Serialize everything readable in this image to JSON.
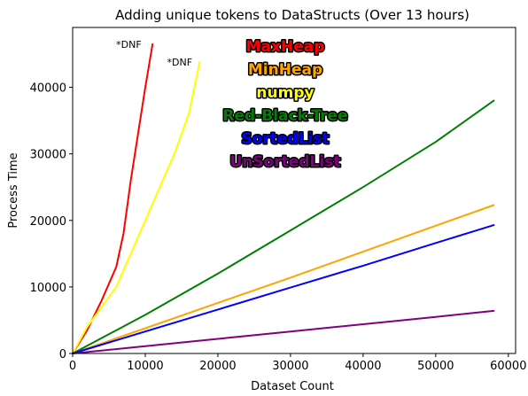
{
  "chart_data": {
    "type": "line",
    "title": "Adding unique tokens to DataStructs (Over 13 hours)",
    "xlabel": "Dataset Count",
    "ylabel": "Process Time",
    "xlim": [
      0,
      61000
    ],
    "ylim": [
      0,
      49000
    ],
    "xticks": [
      0,
      10000,
      20000,
      30000,
      40000,
      50000,
      60000
    ],
    "yticks": [
      0,
      10000,
      20000,
      30000,
      40000
    ],
    "xtick_labels": [
      "0",
      "10000",
      "20000",
      "30000",
      "40000",
      "50000",
      "60000"
    ],
    "ytick_labels": [
      "0",
      "10000",
      "20000",
      "30000",
      "40000"
    ],
    "grid": false,
    "legend_position": "top-center",
    "series": [
      {
        "name": "MaxHeap",
        "color": "#ff0000",
        "x": [
          0,
          2000,
          4000,
          6000,
          7000,
          8000,
          9000,
          10000,
          11000
        ],
        "y": [
          0,
          3500,
          8000,
          13000,
          18000,
          26000,
          33000,
          40000,
          46500
        ]
      },
      {
        "name": "MinHeap",
        "color": "#ffa500",
        "x": [
          0,
          10000,
          20000,
          30000,
          40000,
          50000,
          58000
        ],
        "y": [
          0,
          3800,
          7600,
          11400,
          15300,
          19200,
          22300
        ]
      },
      {
        "name": "numpy",
        "color": "#ffff00",
        "x": [
          0,
          2000,
          4000,
          6000,
          8000,
          10000,
          12000,
          14000,
          16000,
          17500
        ],
        "y": [
          0,
          4000,
          7000,
          10000,
          15000,
          20000,
          25000,
          30000,
          36000,
          43800
        ]
      },
      {
        "name": "Red-Black-Tree",
        "color": "#008000",
        "x": [
          0,
          10000,
          20000,
          30000,
          40000,
          50000,
          58000
        ],
        "y": [
          0,
          5800,
          12000,
          18500,
          25000,
          31800,
          38000
        ]
      },
      {
        "name": "SortedList",
        "color": "#0000ff",
        "x": [
          0,
          10000,
          20000,
          30000,
          40000,
          50000,
          58000
        ],
        "y": [
          0,
          3300,
          6600,
          9900,
          13200,
          16600,
          19300
        ]
      },
      {
        "name": "UnSortedList",
        "color": "#800080",
        "x": [
          0,
          10000,
          20000,
          30000,
          40000,
          50000,
          58000
        ],
        "y": [
          0,
          1100,
          2200,
          3300,
          4400,
          5500,
          6400
        ]
      }
    ],
    "annotations": [
      {
        "text": "*DNF",
        "x": 6000,
        "y": 46500
      },
      {
        "text": "*DNF",
        "x": 13000,
        "y": 43800
      }
    ]
  }
}
